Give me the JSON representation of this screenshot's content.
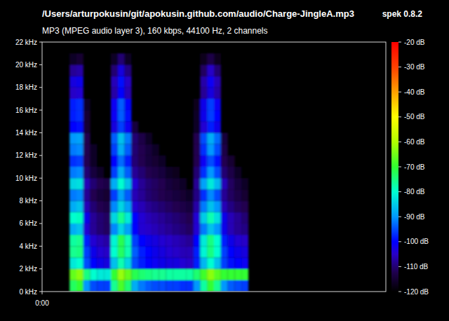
{
  "chart_data": {
    "type": "heatmap",
    "title": "/Users/arturpokusin/git/apokusin.github.com/audio/Charge-JingleA.mp3",
    "subtitle": "MP3 (MPEG audio layer 3), 160 kbps, 44100 Hz, 2 channels",
    "annotation": "spek 0.8.2",
    "xlim": [
      0,
      1
    ],
    "xticks": [
      {
        "value": 0,
        "label": "0:00"
      }
    ],
    "ylim": [
      0,
      22
    ],
    "yticks": [
      {
        "value": 0,
        "label": "0 kHz"
      },
      {
        "value": 2,
        "label": "2 kHz"
      },
      {
        "value": 4,
        "label": "4 kHz"
      },
      {
        "value": 6,
        "label": "6 kHz"
      },
      {
        "value": 8,
        "label": "8 kHz"
      },
      {
        "value": 10,
        "label": "10 kHz"
      },
      {
        "value": 12,
        "label": "12 kHz"
      },
      {
        "value": 14,
        "label": "14 kHz"
      },
      {
        "value": 16,
        "label": "16 kHz"
      },
      {
        "value": 18,
        "label": "18 kHz"
      },
      {
        "value": 20,
        "label": "20 kHz"
      },
      {
        "value": 22,
        "label": "22 kHz"
      }
    ],
    "x_bins": [
      0.08,
      0.1,
      0.12,
      0.14,
      0.16,
      0.18,
      0.2,
      0.22,
      0.24,
      0.26,
      0.28,
      0.3,
      0.32,
      0.34,
      0.36,
      0.38,
      0.4,
      0.42,
      0.44,
      0.46,
      0.48,
      0.5,
      0.52,
      0.54,
      0.56,
      0.58,
      0.6
    ],
    "y_bins": [
      0,
      1,
      2,
      3,
      4,
      5,
      6,
      7,
      8,
      9,
      10,
      11,
      12,
      13,
      14,
      15,
      16,
      17,
      18,
      19,
      20,
      21,
      22
    ],
    "z": [
      [
        -73,
        -66,
        -82,
        -76,
        -77,
        -88,
        -80,
        -88,
        -92,
        -84,
        -92,
        -97,
        -92,
        -90,
        -100,
        -98,
        -98,
        -105,
        -103,
        -108,
        -116,
        null
      ],
      [
        -70,
        -63,
        -80,
        -75,
        -76,
        -86,
        -79,
        -86,
        -91,
        -83,
        -91,
        -96,
        -91,
        -89,
        -99,
        -97,
        -97,
        -104,
        -102,
        -107,
        -115,
        null
      ],
      [
        -90,
        -75,
        -95,
        -96,
        -98,
        -104,
        -102,
        -106,
        -108,
        -106,
        -110,
        -112,
        -112,
        -112,
        -115,
        -115,
        -116,
        null,
        null,
        null,
        null,
        null
      ],
      [
        -95,
        -80,
        -100,
        -102,
        -104,
        -108,
        -108,
        -110,
        -112,
        -110,
        -114,
        -116,
        -116,
        null,
        null,
        null,
        null,
        null,
        null,
        null,
        null,
        null
      ],
      [
        -96,
        -82,
        -102,
        -104,
        -106,
        -110,
        -110,
        -112,
        -114,
        -112,
        -116,
        null,
        null,
        null,
        null,
        null,
        null,
        null,
        null,
        null,
        null,
        null
      ],
      [
        -96,
        -82,
        -103,
        -105,
        -107,
        -111,
        -111,
        -113,
        -115,
        -113,
        null,
        null,
        null,
        null,
        null,
        null,
        null,
        null,
        null,
        null,
        null,
        null
      ],
      [
        -76,
        -70,
        -86,
        -80,
        -81,
        -91,
        -84,
        -91,
        -96,
        -88,
        -96,
        -100,
        -96,
        -94,
        -103,
        -101,
        -101,
        -107,
        -106,
        -110,
        -116,
        null
      ],
      [
        -68,
        -62,
        -78,
        -73,
        -72,
        -84,
        -76,
        -84,
        -89,
        -80,
        -88,
        -93,
        -88,
        -86,
        -96,
        -94,
        -94,
        -100,
        -99,
        -103,
        -110,
        null
      ],
      [
        -74,
        -66,
        -84,
        -78,
        -78,
        -89,
        -82,
        -89,
        -94,
        -86,
        -94,
        -98,
        -94,
        -92,
        -101,
        -99,
        -100,
        -106,
        -105,
        -109,
        -116,
        null
      ],
      [
        -88,
        -72,
        -95,
        -94,
        -96,
        -100,
        -100,
        -104,
        -106,
        -104,
        -108,
        -110,
        -110,
        -110,
        -114,
        null,
        null,
        null,
        null,
        null,
        null,
        null
      ],
      [
        -92,
        -74,
        -98,
        -98,
        -100,
        -104,
        -104,
        -106,
        -108,
        -108,
        -110,
        -112,
        -112,
        -113,
        null,
        null,
        null,
        null,
        null,
        null,
        null,
        null
      ],
      [
        -94,
        -75,
        -100,
        -100,
        -102,
        -105,
        -106,
        -108,
        -110,
        -110,
        -112,
        -114,
        -114,
        -116,
        null,
        null,
        null,
        null,
        null,
        null,
        null,
        null
      ],
      [
        -95,
        -76,
        -101,
        -102,
        -103,
        -106,
        -107,
        -109,
        -111,
        -111,
        -113,
        -115,
        -116,
        null,
        null,
        null,
        null,
        null,
        null,
        null,
        null,
        null
      ],
      [
        -95,
        -76,
        -102,
        -103,
        -104,
        -107,
        -108,
        -110,
        -112,
        -112,
        -114,
        -116,
        null,
        null,
        null,
        null,
        null,
        null,
        null,
        null,
        null,
        null
      ],
      [
        -96,
        -77,
        -103,
        -104,
        -105,
        -108,
        -109,
        -111,
        -113,
        -114,
        -116,
        null,
        null,
        null,
        null,
        null,
        null,
        null,
        null,
        null,
        null,
        null
      ],
      [
        -96,
        -77,
        -103,
        -105,
        -106,
        -109,
        -110,
        -112,
        -114,
        -115,
        -117,
        null,
        null,
        null,
        null,
        null,
        null,
        null,
        null,
        null,
        null,
        null
      ],
      [
        -97,
        -77,
        -104,
        -106,
        -107,
        -110,
        -111,
        -113,
        -115,
        -116,
        null,
        null,
        null,
        null,
        null,
        null,
        null,
        null,
        null,
        null,
        null,
        null
      ],
      [
        -97,
        -77,
        -105,
        -106,
        -108,
        -111,
        -112,
        -114,
        -116,
        null,
        null,
        null,
        null,
        null,
        null,
        null,
        null,
        null,
        null,
        null,
        null,
        null
      ],
      [
        -90,
        -74,
        -98,
        -98,
        -100,
        -104,
        -104,
        -107,
        -109,
        -108,
        -110,
        -112,
        -112,
        -112,
        -116,
        -116,
        -117,
        null,
        null,
        null,
        null,
        null
      ],
      [
        -77,
        -69,
        -87,
        -81,
        -82,
        -92,
        -85,
        -92,
        -97,
        -89,
        -97,
        -101,
        -97,
        -95,
        -104,
        -102,
        -102,
        -108,
        -107,
        -111,
        -117,
        null
      ],
      [
        -70,
        -63,
        -80,
        -75,
        -75,
        -86,
        -78,
        -86,
        -91,
        -82,
        -90,
        -95,
        -90,
        -88,
        -98,
        -96,
        -96,
        -103,
        -101,
        -105,
        -113,
        null
      ],
      [
        -76,
        -67,
        -86,
        -80,
        -80,
        -90,
        -83,
        -90,
        -95,
        -87,
        -95,
        -99,
        -95,
        -93,
        -102,
        -100,
        -101,
        -107,
        -106,
        -110,
        -117,
        null
      ],
      [
        -90,
        -70,
        -96,
        -96,
        -98,
        -102,
        -102,
        -106,
        -108,
        -106,
        -110,
        -112,
        -113,
        -114,
        null,
        null,
        null,
        null,
        null,
        null,
        null,
        null
      ],
      [
        -94,
        -70,
        -99,
        -100,
        -102,
        -106,
        -106,
        -109,
        -111,
        -111,
        -113,
        -115,
        null,
        null,
        null,
        null,
        null,
        null,
        null,
        null,
        null,
        null
      ],
      [
        -95,
        -70,
        -100,
        -102,
        -104,
        -108,
        -108,
        -111,
        -113,
        -114,
        -116,
        null,
        null,
        null,
        null,
        null,
        null,
        null,
        null,
        null,
        null,
        null
      ],
      [
        -96,
        -70,
        -101,
        -103,
        -105,
        -109,
        -110,
        -112,
        -115,
        -116,
        null,
        null,
        null,
        null,
        null,
        null,
        null,
        null,
        null,
        null,
        null,
        null
      ]
    ],
    "colorbar_range": [
      -120,
      -20
    ],
    "colorbar_ticks": [
      {
        "value": -20,
        "label": "-20 dB"
      },
      {
        "value": -30,
        "label": "-30 dB"
      },
      {
        "value": -40,
        "label": "-40 dB"
      },
      {
        "value": -50,
        "label": "-50 dB"
      },
      {
        "value": -60,
        "label": "-60 dB"
      },
      {
        "value": -70,
        "label": "-70 dB"
      },
      {
        "value": -80,
        "label": "-80 dB"
      },
      {
        "value": -90,
        "label": "-90 dB"
      },
      {
        "value": -100,
        "label": "-100 dB"
      },
      {
        "value": -110,
        "label": "-110 dB"
      },
      {
        "value": -120,
        "label": "-120 dB"
      }
    ]
  }
}
